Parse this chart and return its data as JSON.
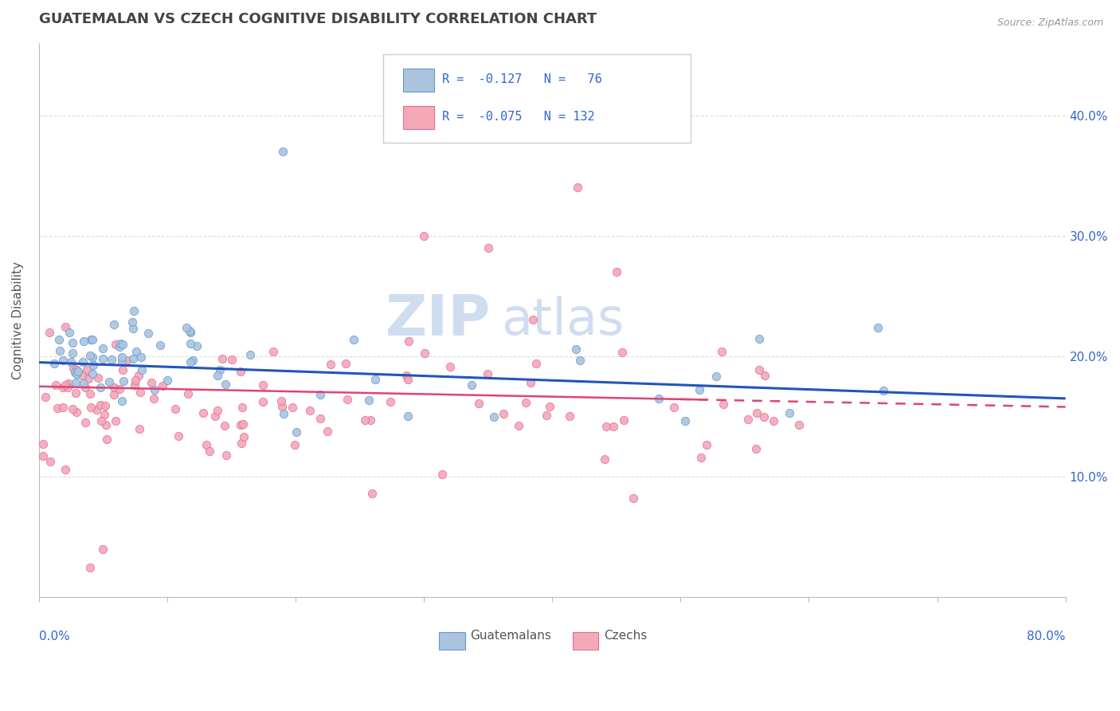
{
  "title": "GUATEMALAN VS CZECH COGNITIVE DISABILITY CORRELATION CHART",
  "source": "Source: ZipAtlas.com",
  "ylabel": "Cognitive Disability",
  "watermark": "ZIPatlas",
  "guatemalan_R": -0.127,
  "guatemalan_N": 76,
  "czech_R": -0.075,
  "czech_N": 132,
  "blue_dot_color": "#aac4e0",
  "pink_dot_color": "#f4a8b8",
  "blue_edge_color": "#6699cc",
  "pink_edge_color": "#e07090",
  "blue_line_color": "#2255bb",
  "pink_line_color": "#dd4477",
  "title_color": "#444444",
  "axis_label_color": "#3366cc",
  "legend_text_color": "#3366cc",
  "background_color": "#ffffff",
  "grid_color": "#dddddd",
  "xlim": [
    0.0,
    0.8
  ],
  "ylim": [
    0.0,
    0.46
  ],
  "yticks": [
    0.1,
    0.2,
    0.3,
    0.4
  ],
  "ytick_labels": [
    "10.0%",
    "20.0%",
    "30.0%",
    "40.0%"
  ],
  "blue_trend_start_y": 0.195,
  "blue_trend_end_y": 0.165,
  "pink_trend_start_y": 0.175,
  "pink_trend_end_y": 0.158
}
